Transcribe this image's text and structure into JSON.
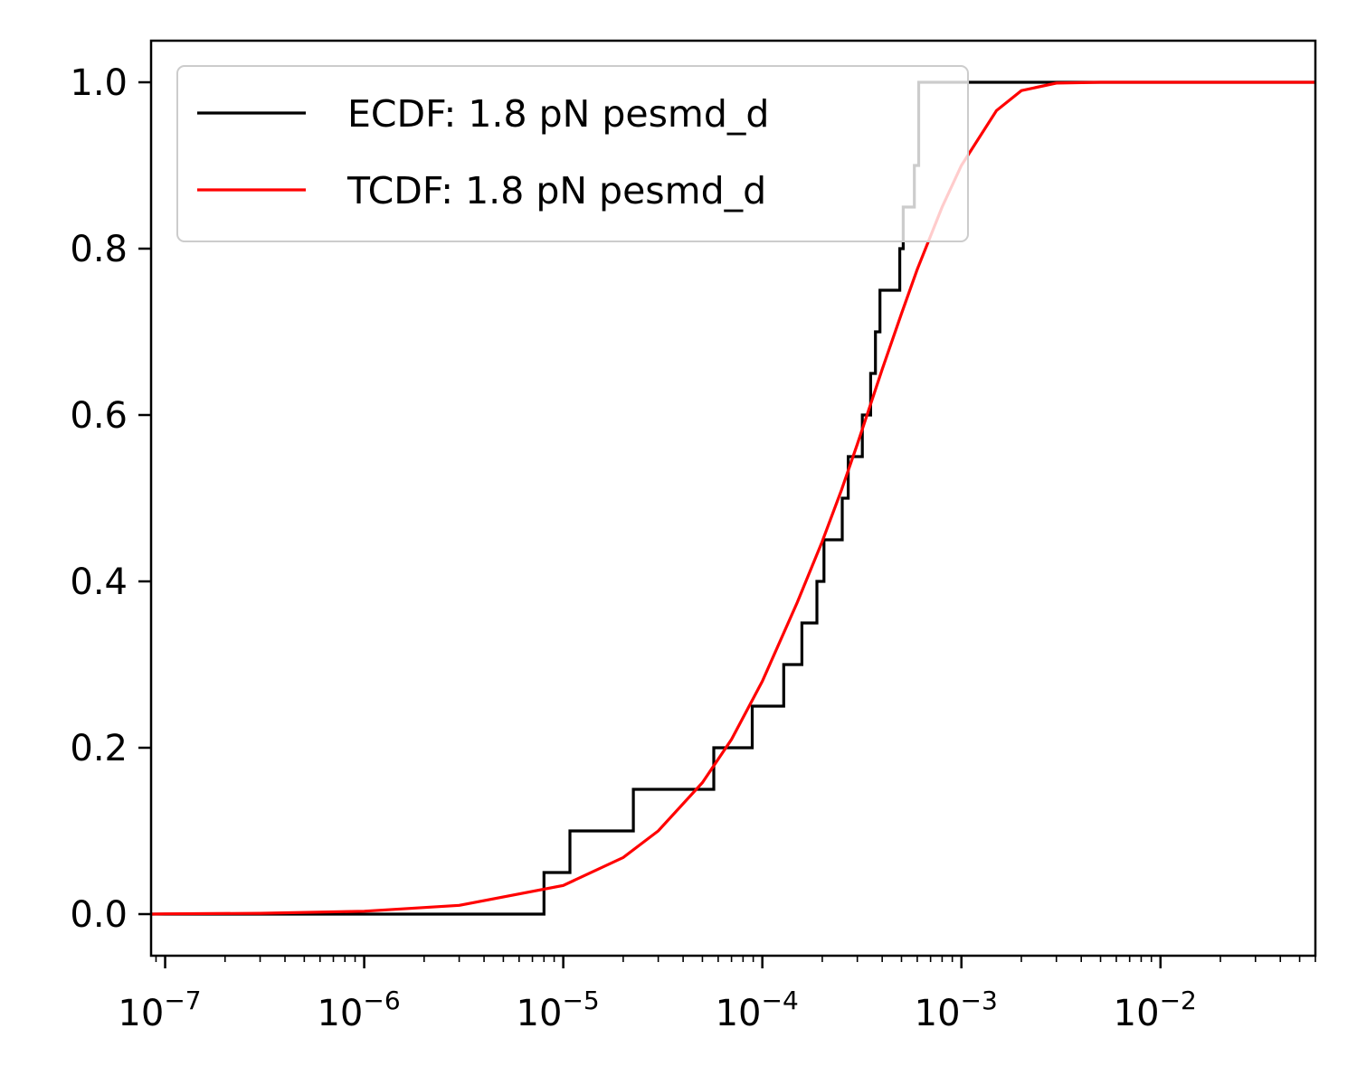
{
  "chart_data": {
    "type": "line",
    "title": "",
    "xlabel": "",
    "ylabel": "",
    "x_scale": "log",
    "xlim": [
      8.5e-08,
      0.06
    ],
    "ylim": [
      -0.05,
      1.05
    ],
    "grid": false,
    "legend_position": "top-left",
    "x_ticks": [
      {
        "value": 1e-07,
        "base": "10",
        "exp": "−7"
      },
      {
        "value": 1e-06,
        "base": "10",
        "exp": "−6"
      },
      {
        "value": 1e-05,
        "base": "10",
        "exp": "−5"
      },
      {
        "value": 0.0001,
        "base": "10",
        "exp": "−4"
      },
      {
        "value": 0.001,
        "base": "10",
        "exp": "−3"
      },
      {
        "value": 0.01,
        "base": "10",
        "exp": "−2"
      }
    ],
    "y_ticks": [
      {
        "value": 0.0,
        "label": "0.0"
      },
      {
        "value": 0.2,
        "label": "0.2"
      },
      {
        "value": 0.4,
        "label": "0.4"
      },
      {
        "value": 0.6,
        "label": "0.6"
      },
      {
        "value": 0.8,
        "label": "0.8"
      },
      {
        "value": 1.0,
        "label": "1.0"
      }
    ],
    "series": [
      {
        "name": "ECDF: 1.8 pN pesmd_d",
        "kind": "step",
        "color": "#000000",
        "x": [
          8.5e-08,
          8e-06,
          1.08e-05,
          2.25e-05,
          5.7e-05,
          8.9e-05,
          0.000128,
          0.000158,
          0.000188,
          0.000204,
          0.000252,
          0.00027,
          0.000318,
          0.00035,
          0.00037,
          0.00039,
          0.00049,
          0.00051,
          0.00058,
          0.00061,
          0.06
        ],
        "y": [
          0.0,
          0.05,
          0.1,
          0.15,
          0.2,
          0.25,
          0.3,
          0.35,
          0.4,
          0.45,
          0.5,
          0.55,
          0.6,
          0.65,
          0.7,
          0.75,
          0.8,
          0.85,
          0.9,
          1.0,
          1.0
        ]
      },
      {
        "name": "TCDF: 1.8 pN pesmd_d",
        "kind": "curve",
        "color": "#ff0000",
        "x": [
          8.5e-08,
          1e-07,
          3e-07,
          1e-06,
          3e-06,
          1e-05,
          2e-05,
          3e-05,
          5e-05,
          7e-05,
          0.0001,
          0.00015,
          0.0002,
          0.00025,
          0.0003,
          0.0004,
          0.0005,
          0.0006,
          0.0008,
          0.001,
          0.0015,
          0.002,
          0.003,
          0.005,
          0.01,
          0.06
        ],
        "y": [
          0.0,
          0.0003,
          0.001,
          0.0035,
          0.0105,
          0.0345,
          0.068,
          0.1,
          0.158,
          0.21,
          0.28,
          0.375,
          0.448,
          0.51,
          0.565,
          0.655,
          0.722,
          0.775,
          0.85,
          0.9,
          0.966,
          0.99,
          0.999,
          1.0,
          1.0,
          1.0
        ]
      }
    ]
  }
}
